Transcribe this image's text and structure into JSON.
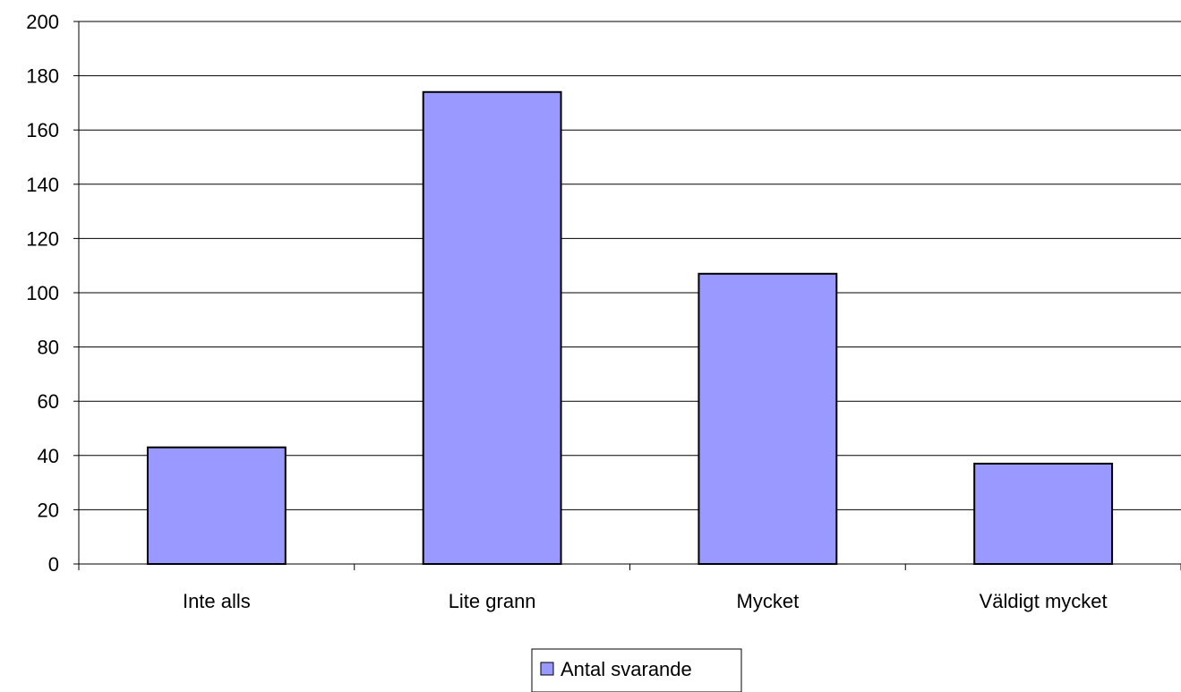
{
  "chart_data": {
    "type": "bar",
    "title": "",
    "xlabel": "",
    "ylabel": "",
    "categories": [
      "Inte alls",
      "Lite grann",
      "Mycket",
      "Väldigt mycket"
    ],
    "series": [
      {
        "name": "Antal svarande",
        "values": [
          43,
          174,
          107,
          37
        ],
        "color": "#9999ff"
      }
    ],
    "ylim": [
      0,
      200
    ],
    "yticks": [
      0,
      20,
      40,
      60,
      80,
      100,
      120,
      140,
      160,
      180,
      200
    ],
    "grid": "horizontal",
    "legend": "bottom"
  }
}
